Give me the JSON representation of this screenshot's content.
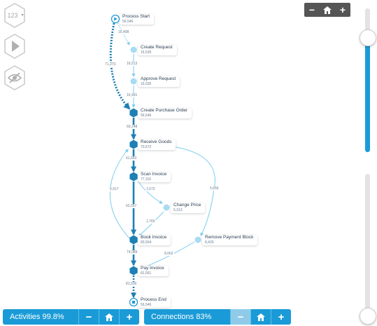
{
  "toolbar": {
    "counter_label": "123",
    "counter_icon": "numbers-dropdown-icon",
    "play_icon": "play-icon",
    "visibility_icon": "eye-hidden-icon"
  },
  "zoom": {
    "out_label": "−",
    "home_icon": "home-icon",
    "in_label": "+"
  },
  "colors": {
    "accent": "#1a9bd7",
    "node_dark": "#1e80b4",
    "node_light": "#a8dcf2",
    "edge_light": "#7ccdee",
    "zoom_bg": "#555555"
  },
  "nodes": [
    {
      "id": "start",
      "name": "Process Start",
      "count": "56,546",
      "kind": "start"
    },
    {
      "id": "create_request",
      "name": "Create Request",
      "count": "16,535",
      "kind": "light"
    },
    {
      "id": "approve_request",
      "name": "Approve Request",
      "count": "16,535",
      "kind": "light"
    },
    {
      "id": "create_po",
      "name": "Create Purchase Order",
      "count": "56,546",
      "kind": "dark"
    },
    {
      "id": "receive_goods",
      "name": "Receive Goods",
      "count": "70,672",
      "kind": "dark"
    },
    {
      "id": "scan_invoice",
      "name": "Scan Invoice",
      "count": "77,116",
      "kind": "dark"
    },
    {
      "id": "change_price",
      "name": "Change Price",
      "count": "5,313",
      "kind": "light"
    },
    {
      "id": "book_invoice",
      "name": "Book Invoice",
      "count": "83,504",
      "kind": "dark"
    },
    {
      "id": "remove_block",
      "name": "Remove Payment Block",
      "count": "8,426",
      "kind": "light"
    },
    {
      "id": "pay_invoice",
      "name": "Pay Invoice",
      "count": "81,561",
      "kind": "dark"
    },
    {
      "id": "end",
      "name": "Process End",
      "count": "56,546",
      "kind": "end"
    }
  ],
  "edges": [
    {
      "from": "start",
      "to": "create_request",
      "label": "16,498",
      "style": "dotted-light"
    },
    {
      "from": "create_request",
      "to": "approve_request",
      "label": "16,513",
      "style": "light"
    },
    {
      "from": "approve_request",
      "to": "create_po",
      "label": "16,491",
      "style": "light"
    },
    {
      "from": "start",
      "to": "create_po",
      "label": "71,273",
      "style": "dotted-dark"
    },
    {
      "from": "create_po",
      "to": "receive_goods",
      "label": "69,248",
      "style": "dark"
    },
    {
      "from": "receive_goods",
      "to": "scan_invoice",
      "label": "61,663",
      "style": "dark"
    },
    {
      "from": "scan_invoice",
      "to": "change_price",
      "label": "1,572",
      "style": "light"
    },
    {
      "from": "scan_invoice",
      "to": "book_invoice",
      "label": "62,057",
      "style": "dark"
    },
    {
      "from": "change_price",
      "to": "book_invoice",
      "label": "1,760",
      "style": "light"
    },
    {
      "from": "book_invoice",
      "to": "receive_goods",
      "label": "6,917",
      "style": "light"
    },
    {
      "from": "receive_goods",
      "to": "remove_block",
      "label": "5,656",
      "style": "light"
    },
    {
      "from": "book_invoice",
      "to": "pay_invoice",
      "label": "74,089",
      "style": "dark"
    },
    {
      "from": "remove_block",
      "to": "pay_invoice",
      "label": "8,062",
      "style": "light"
    },
    {
      "from": "pay_invoice",
      "to": "end",
      "label": "81,536",
      "style": "dotted-dark"
    }
  ],
  "sliders": {
    "activities_level": 0.8,
    "connections_level": 0.0
  },
  "activities_bar": {
    "label": "Activities 99.8%",
    "minus": "−",
    "home_icon": "home-icon",
    "plus": "+"
  },
  "connections_bar": {
    "label": "Connections 83%",
    "minus": "−",
    "home_icon": "home-icon",
    "plus": "+"
  }
}
